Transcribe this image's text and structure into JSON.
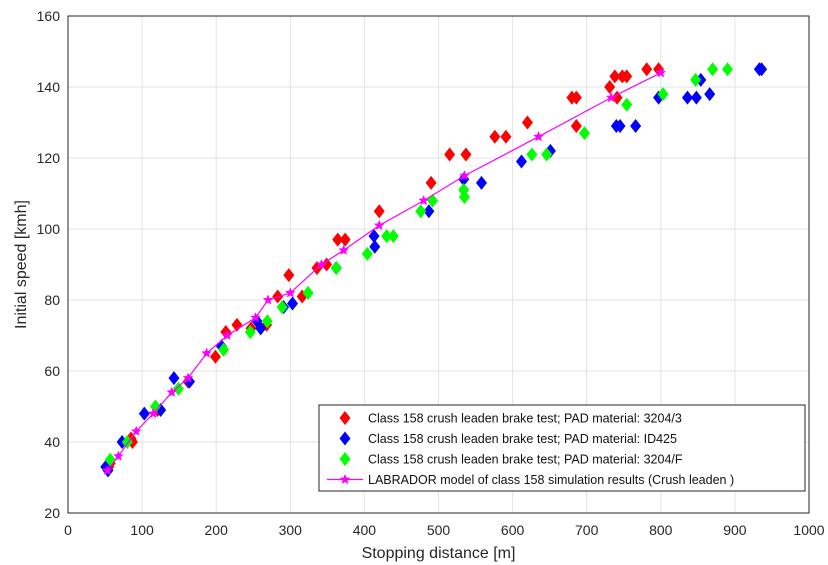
{
  "chart_data": {
    "type": "scatter",
    "title": "",
    "xlabel": "Stopping distance [m]",
    "ylabel": "Initial speed [kmh]",
    "xlim": [
      0,
      1000
    ],
    "ylim": [
      20,
      160
    ],
    "xticks": [
      0,
      100,
      200,
      300,
      400,
      500,
      600,
      700,
      800,
      900,
      1000
    ],
    "yticks": [
      20,
      40,
      60,
      80,
      100,
      120,
      140,
      160
    ],
    "grid": true,
    "legend_position": "bottom-right",
    "series": [
      {
        "name": "Class 158 crush leaden brake test; PAD material: 3204/3",
        "marker": "diamond",
        "color": "#ff0000",
        "points": [
          [
            55,
            33
          ],
          [
            57,
            34
          ],
          [
            85,
            41
          ],
          [
            87,
            40
          ],
          [
            121,
            49
          ],
          [
            162,
            57
          ],
          [
            199,
            64
          ],
          [
            213,
            71
          ],
          [
            228,
            73
          ],
          [
            247,
            72
          ],
          [
            268,
            73
          ],
          [
            283,
            81
          ],
          [
            298,
            87
          ],
          [
            316,
            81
          ],
          [
            336,
            89
          ],
          [
            349,
            90
          ],
          [
            364,
            97
          ],
          [
            374,
            97
          ],
          [
            420,
            105
          ],
          [
            490,
            113
          ],
          [
            515,
            121
          ],
          [
            537,
            121
          ],
          [
            576,
            126
          ],
          [
            591,
            126
          ],
          [
            620,
            130
          ],
          [
            680,
            137
          ],
          [
            686,
            137
          ],
          [
            686,
            129
          ],
          [
            731,
            140
          ],
          [
            738,
            143
          ],
          [
            748,
            143
          ],
          [
            754,
            143
          ],
          [
            741,
            137
          ],
          [
            781,
            145
          ],
          [
            797,
            145
          ]
        ]
      },
      {
        "name": "Class 158 crush leaden brake test; PAD material: ID425",
        "marker": "diamond",
        "color": "#0000ff",
        "points": [
          [
            51,
            33
          ],
          [
            54,
            32
          ],
          [
            73,
            40
          ],
          [
            103,
            48
          ],
          [
            125,
            49
          ],
          [
            143,
            58
          ],
          [
            164,
            57
          ],
          [
            207,
            67
          ],
          [
            255,
            74
          ],
          [
            260,
            72
          ],
          [
            291,
            78
          ],
          [
            303,
            79
          ],
          [
            362,
            89
          ],
          [
            413,
            98
          ],
          [
            414,
            95
          ],
          [
            487,
            105
          ],
          [
            534,
            114
          ],
          [
            558,
            113
          ],
          [
            612,
            119
          ],
          [
            651,
            122
          ],
          [
            740,
            129
          ],
          [
            745,
            129
          ],
          [
            766,
            129
          ],
          [
            797,
            137
          ],
          [
            836,
            137
          ],
          [
            848,
            137
          ],
          [
            854,
            142
          ],
          [
            866,
            138
          ],
          [
            933,
            145
          ],
          [
            936,
            145
          ]
        ]
      },
      {
        "name": "Class 158 crush leaden  brake test; PAD material: 3204/F",
        "marker": "diamond",
        "color": "#00ff00",
        "points": [
          [
            57,
            35
          ],
          [
            80,
            40
          ],
          [
            118,
            50
          ],
          [
            149,
            55
          ],
          [
            210,
            66
          ],
          [
            246,
            71
          ],
          [
            269,
            74
          ],
          [
            289,
            78
          ],
          [
            324,
            82
          ],
          [
            362,
            89
          ],
          [
            404,
            93
          ],
          [
            430,
            98
          ],
          [
            439,
            98
          ],
          [
            476,
            105
          ],
          [
            492,
            108
          ],
          [
            534,
            111
          ],
          [
            535,
            109
          ],
          [
            626,
            121
          ],
          [
            646,
            121
          ],
          [
            697,
            127
          ],
          [
            754,
            135
          ],
          [
            803,
            138
          ],
          [
            847,
            142
          ],
          [
            870,
            145
          ],
          [
            890,
            145
          ]
        ]
      },
      {
        "name": "LABRADOR model of class 158 simulation results (Crush leaden )",
        "marker": "star",
        "color": "#ff00ff",
        "line": true,
        "points": [
          [
            53,
            32
          ],
          [
            68,
            36
          ],
          [
            92,
            43
          ],
          [
            115,
            48
          ],
          [
            140,
            54
          ],
          [
            162,
            58
          ],
          [
            187,
            65
          ],
          [
            215,
            70
          ],
          [
            253,
            75
          ],
          [
            270,
            80
          ],
          [
            300,
            82
          ],
          [
            342,
            90
          ],
          [
            372,
            94
          ],
          [
            420,
            101
          ],
          [
            480,
            108
          ],
          [
            535,
            115
          ],
          [
            635,
            126
          ],
          [
            733,
            137
          ],
          [
            800,
            144
          ]
        ]
      }
    ]
  }
}
